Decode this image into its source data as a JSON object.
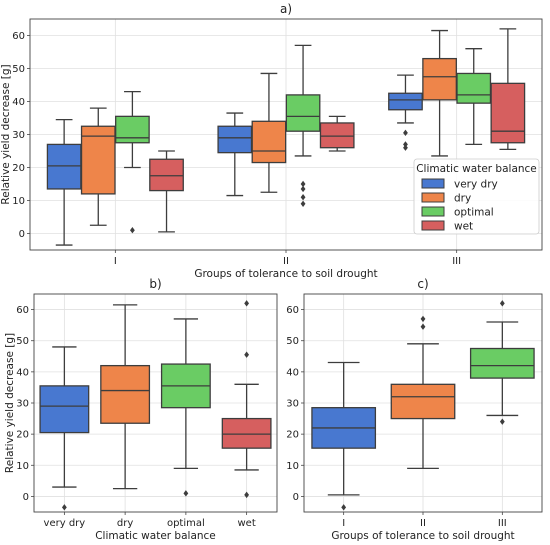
{
  "chart_data": [
    {
      "id": "a",
      "type": "boxplot",
      "title": "a)",
      "xlabel": "Groups of tolerance to soil drought",
      "ylabel": "Relative yield decrease [g]",
      "ylim": [
        -5,
        65
      ],
      "yticks": [
        0,
        10,
        20,
        30,
        40,
        50,
        60
      ],
      "grid": true,
      "categories": [
        "I",
        "II",
        "III"
      ],
      "legend": {
        "title": "Climatic water balance",
        "placement": "center-right"
      },
      "series": [
        {
          "name": "very dry",
          "color": "#4878d0",
          "boxes": [
            {
              "whislo": -3.5,
              "q1": 13.5,
              "med": 20.5,
              "q3": 27,
              "whishi": 34.5,
              "fliers": []
            },
            {
              "whislo": 11.5,
              "q1": 24.5,
              "med": 29,
              "q3": 32.5,
              "whishi": 36.5,
              "fliers": []
            },
            {
              "whislo": 33.5,
              "q1": 37.5,
              "med": 40.5,
              "q3": 42.5,
              "whishi": 48,
              "fliers": [
                30.5,
                27,
                26
              ]
            }
          ]
        },
        {
          "name": "dry",
          "color": "#ee854a",
          "boxes": [
            {
              "whislo": 2.5,
              "q1": 12,
              "med": 29.5,
              "q3": 32.5,
              "whishi": 38,
              "fliers": []
            },
            {
              "whislo": 12.5,
              "q1": 21.5,
              "med": 25,
              "q3": 34,
              "whishi": 48.5,
              "fliers": []
            },
            {
              "whislo": 23.5,
              "q1": 40.5,
              "med": 47.5,
              "q3": 53,
              "whishi": 61.5,
              "fliers": []
            }
          ]
        },
        {
          "name": "optimal",
          "color": "#6acc64",
          "boxes": [
            {
              "whislo": 20,
              "q1": 27.5,
              "med": 29,
              "q3": 35.5,
              "whishi": 43,
              "fliers": [
                1
              ]
            },
            {
              "whislo": 23.5,
              "q1": 31,
              "med": 35.5,
              "q3": 42,
              "whishi": 57,
              "fliers": [
                15,
                13.5,
                11,
                9
              ]
            },
            {
              "whislo": 27,
              "q1": 39.5,
              "med": 42,
              "q3": 48.5,
              "whishi": 56,
              "fliers": []
            }
          ]
        },
        {
          "name": "wet",
          "color": "#d65f5f",
          "boxes": [
            {
              "whislo": 0.5,
              "q1": 13,
              "med": 17.5,
              "q3": 22.5,
              "whishi": 25,
              "fliers": []
            },
            {
              "whislo": 25,
              "q1": 26,
              "med": 29.5,
              "q3": 33.5,
              "whishi": 35.5,
              "fliers": []
            },
            {
              "whislo": 25.5,
              "q1": 27.5,
              "med": 31,
              "q3": 45.5,
              "whishi": 62,
              "fliers": []
            }
          ]
        }
      ]
    },
    {
      "id": "b",
      "type": "boxplot",
      "title": "b)",
      "xlabel": "Climatic water balance",
      "ylabel": "Relative yield decrease [g]",
      "ylim": [
        -5,
        65
      ],
      "yticks": [
        0,
        10,
        20,
        30,
        40,
        50,
        60
      ],
      "grid": true,
      "categories": [
        "very dry",
        "dry",
        "optimal",
        "wet"
      ],
      "boxes": [
        {
          "color": "#4878d0",
          "whislo": 3,
          "q1": 20.5,
          "med": 29,
          "q3": 35.5,
          "whishi": 48,
          "fliers": [
            -3.5
          ]
        },
        {
          "color": "#ee854a",
          "whislo": 2.5,
          "q1": 23.5,
          "med": 34,
          "q3": 42,
          "whishi": 61.5,
          "fliers": []
        },
        {
          "color": "#6acc64",
          "whislo": 9,
          "q1": 28.5,
          "med": 35.5,
          "q3": 42.5,
          "whishi": 57,
          "fliers": [
            1
          ]
        },
        {
          "color": "#d65f5f",
          "whislo": 8.5,
          "q1": 15.5,
          "med": 20,
          "q3": 25,
          "whishi": 36,
          "fliers": [
            62,
            45.5,
            0.5
          ]
        }
      ]
    },
    {
      "id": "c",
      "type": "boxplot",
      "title": "c)",
      "xlabel": "Groups of tolerance to soil drought",
      "ylabel": "",
      "ylim": [
        -5,
        65
      ],
      "yticks": [
        0,
        10,
        20,
        30,
        40,
        50,
        60
      ],
      "grid": true,
      "categories": [
        "I",
        "II",
        "III"
      ],
      "boxes": [
        {
          "color": "#4878d0",
          "whislo": 0.5,
          "q1": 15.5,
          "med": 22,
          "q3": 28.5,
          "whishi": 43,
          "fliers": [
            -3.5
          ]
        },
        {
          "color": "#ee854a",
          "whislo": 9,
          "q1": 25,
          "med": 32,
          "q3": 36,
          "whishi": 49,
          "fliers": [
            57,
            54.5
          ]
        },
        {
          "color": "#6acc64",
          "whislo": 26,
          "q1": 38,
          "med": 42,
          "q3": 47.5,
          "whishi": 56,
          "fliers": [
            62,
            24
          ]
        }
      ]
    }
  ]
}
